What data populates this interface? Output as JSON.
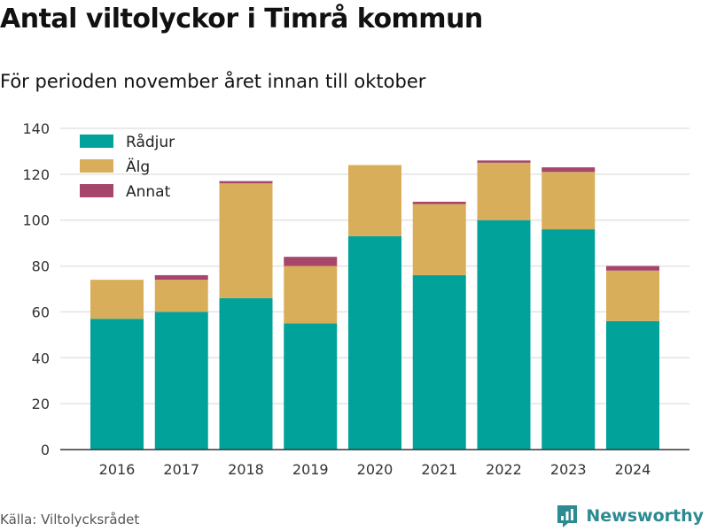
{
  "title": "Antal viltolyckor i Timrå kommun",
  "subtitle": "För perioden november året innan till oktober",
  "source": "Källa: Viltolycksrådet",
  "brand": "Newsworthy",
  "brand_icon": "newsworthy-chart-icon",
  "chart_data": {
    "type": "bar",
    "stacked": true,
    "categories": [
      "2016",
      "2017",
      "2018",
      "2019",
      "2020",
      "2021",
      "2022",
      "2023",
      "2024"
    ],
    "series": [
      {
        "name": "Rådjur",
        "color": "#00a29a",
        "values": [
          57,
          60,
          66,
          55,
          93,
          76,
          100,
          96,
          56
        ]
      },
      {
        "name": "Älg",
        "color": "#d9ae5b",
        "values": [
          17,
          14,
          50,
          25,
          31,
          31,
          25,
          25,
          22
        ]
      },
      {
        "name": "Annat",
        "color": "#a6466a",
        "values": [
          0,
          2,
          1,
          4,
          0,
          1,
          1,
          2,
          2
        ]
      }
    ],
    "ylim": [
      0,
      140
    ],
    "yticks": [
      0,
      20,
      40,
      60,
      80,
      100,
      120,
      140
    ],
    "grid": true,
    "legend": "top-left",
    "xlabel": "",
    "ylabel": ""
  }
}
